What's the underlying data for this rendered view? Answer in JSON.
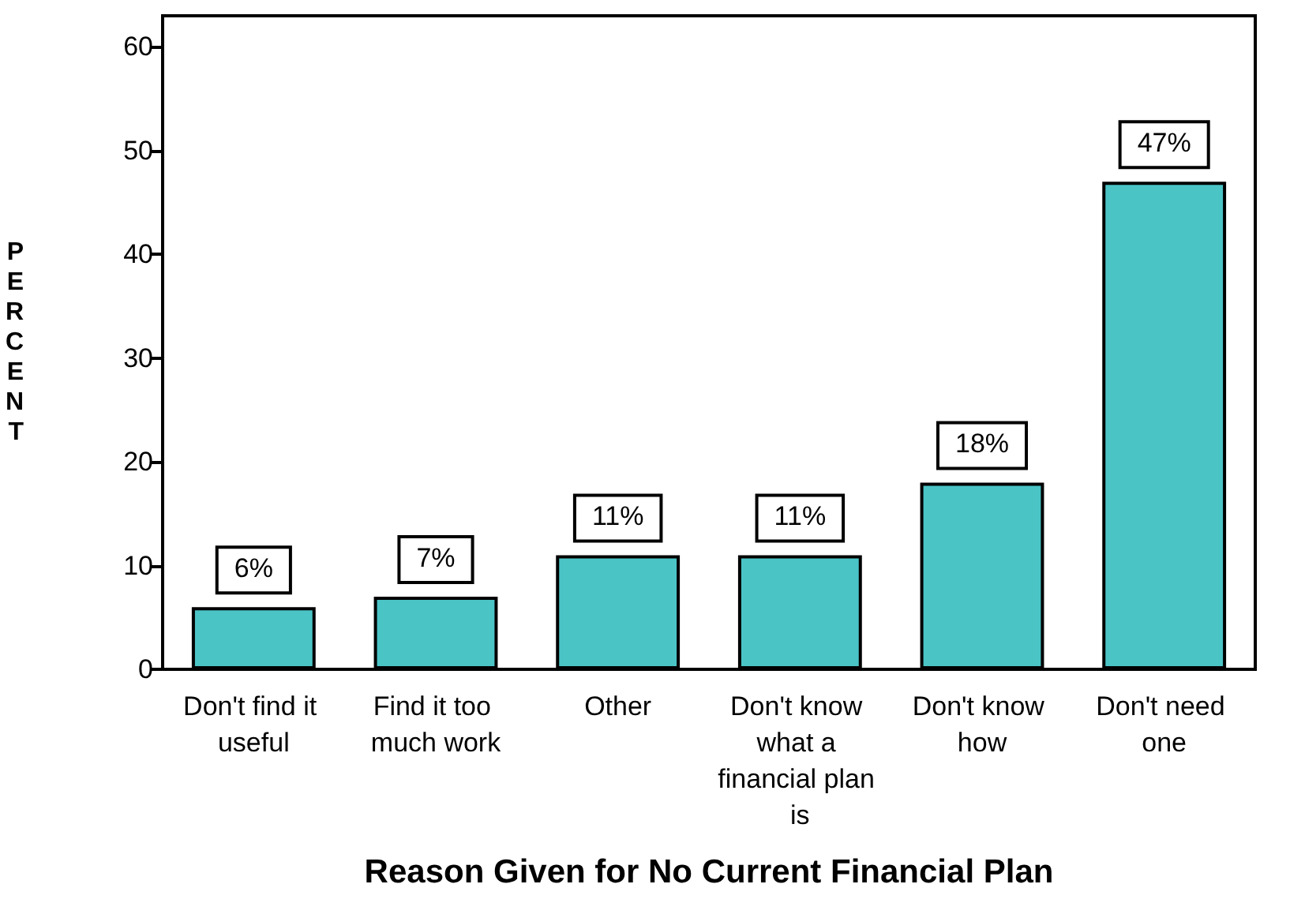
{
  "chart_data": {
    "type": "bar",
    "xlabel": "Reason Given for No Current Financial Plan",
    "ylabel": "PERCENT",
    "categories": [
      "Don't find it useful",
      "Find it too much work",
      "Other",
      "Don't know what a financial plan is",
      "Don't know how",
      "Don't need one"
    ],
    "values": [
      6,
      7,
      11,
      11,
      18,
      47
    ],
    "value_labels": [
      "6%",
      "7%",
      "11%",
      "11%",
      "18%",
      "47%"
    ],
    "color": "#4bc4c6",
    "ylim": [
      0,
      63
    ],
    "yticks": [
      0,
      10,
      20,
      30,
      40,
      50,
      60
    ],
    "grid": false
  }
}
